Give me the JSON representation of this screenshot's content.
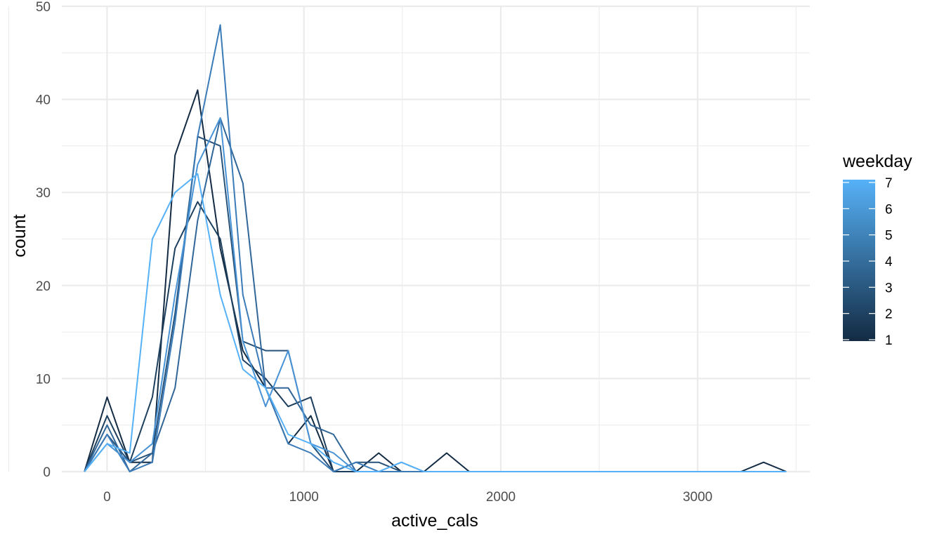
{
  "chart_data": {
    "type": "line",
    "title": "",
    "xlabel": "active_cals",
    "ylabel": "count",
    "xlim": [
      -230,
      3570
    ],
    "ylim": [
      0,
      50
    ],
    "x_ticks": [
      0,
      1000,
      2000,
      3000
    ],
    "x_tick_labels": [
      "0",
      "1000",
      "2000",
      "3000"
    ],
    "y_ticks": [
      0,
      10,
      20,
      30,
      40,
      50
    ],
    "y_tick_labels": [
      "0",
      "10",
      "20",
      "30",
      "40",
      "50"
    ],
    "grid": true,
    "legend": {
      "title": "weekday",
      "position": "right",
      "type": "colorbar",
      "labels": [
        "1",
        "2",
        "3",
        "4",
        "5",
        "6",
        "7"
      ],
      "low_color": "#132B43",
      "high_color": "#56B1F7"
    },
    "x": [
      -115,
      0,
      115,
      230,
      345,
      460,
      575,
      690,
      805,
      920,
      1035,
      1150,
      1265,
      1380,
      1495,
      1610,
      1725,
      1840,
      3220,
      3335,
      3450
    ],
    "series": [
      {
        "weekday": 1,
        "color": "#132B43",
        "values": [
          0,
          8,
          1,
          1,
          34,
          41,
          24,
          13,
          9,
          3,
          6,
          0,
          0,
          2,
          0,
          0,
          2,
          0,
          0,
          1,
          0
        ]
      },
      {
        "weekday": 2,
        "color": "#1D3F5E",
        "values": [
          0,
          6,
          1,
          8,
          24,
          29,
          25,
          12,
          10,
          7,
          8,
          0,
          0,
          0,
          0,
          0,
          0,
          0,
          0,
          0,
          0
        ]
      },
      {
        "weekday": 3,
        "color": "#27527A",
        "values": [
          0,
          4,
          1,
          2,
          17,
          36,
          35,
          14,
          13,
          13,
          3,
          0,
          1,
          1,
          0,
          0,
          0,
          0,
          0,
          0,
          0
        ]
      },
      {
        "weekday": 4,
        "color": "#316699",
        "values": [
          0,
          5,
          0,
          2,
          9,
          27,
          38,
          31,
          9,
          9,
          5,
          4,
          0,
          0,
          0,
          0,
          0,
          0,
          0,
          0,
          0
        ]
      },
      {
        "weekday": 5,
        "color": "#3A7BB8",
        "values": [
          0,
          4,
          0,
          1,
          16,
          36,
          48,
          19,
          9,
          3,
          2,
          0,
          1,
          0,
          0,
          0,
          0,
          0,
          0,
          0,
          0
        ]
      },
      {
        "weekday": 6,
        "color": "#4893D6",
        "values": [
          0,
          3,
          1,
          3,
          19,
          33,
          38,
          14,
          7,
          13,
          3,
          2,
          0,
          0,
          1,
          0,
          0,
          0,
          0,
          0,
          0
        ]
      },
      {
        "weekday": 7,
        "color": "#56B1F7",
        "values": [
          0,
          3,
          2,
          25,
          30,
          32,
          19,
          11,
          9,
          4,
          3,
          1,
          0,
          0,
          1,
          0,
          0,
          0,
          0,
          0,
          0
        ]
      }
    ]
  }
}
